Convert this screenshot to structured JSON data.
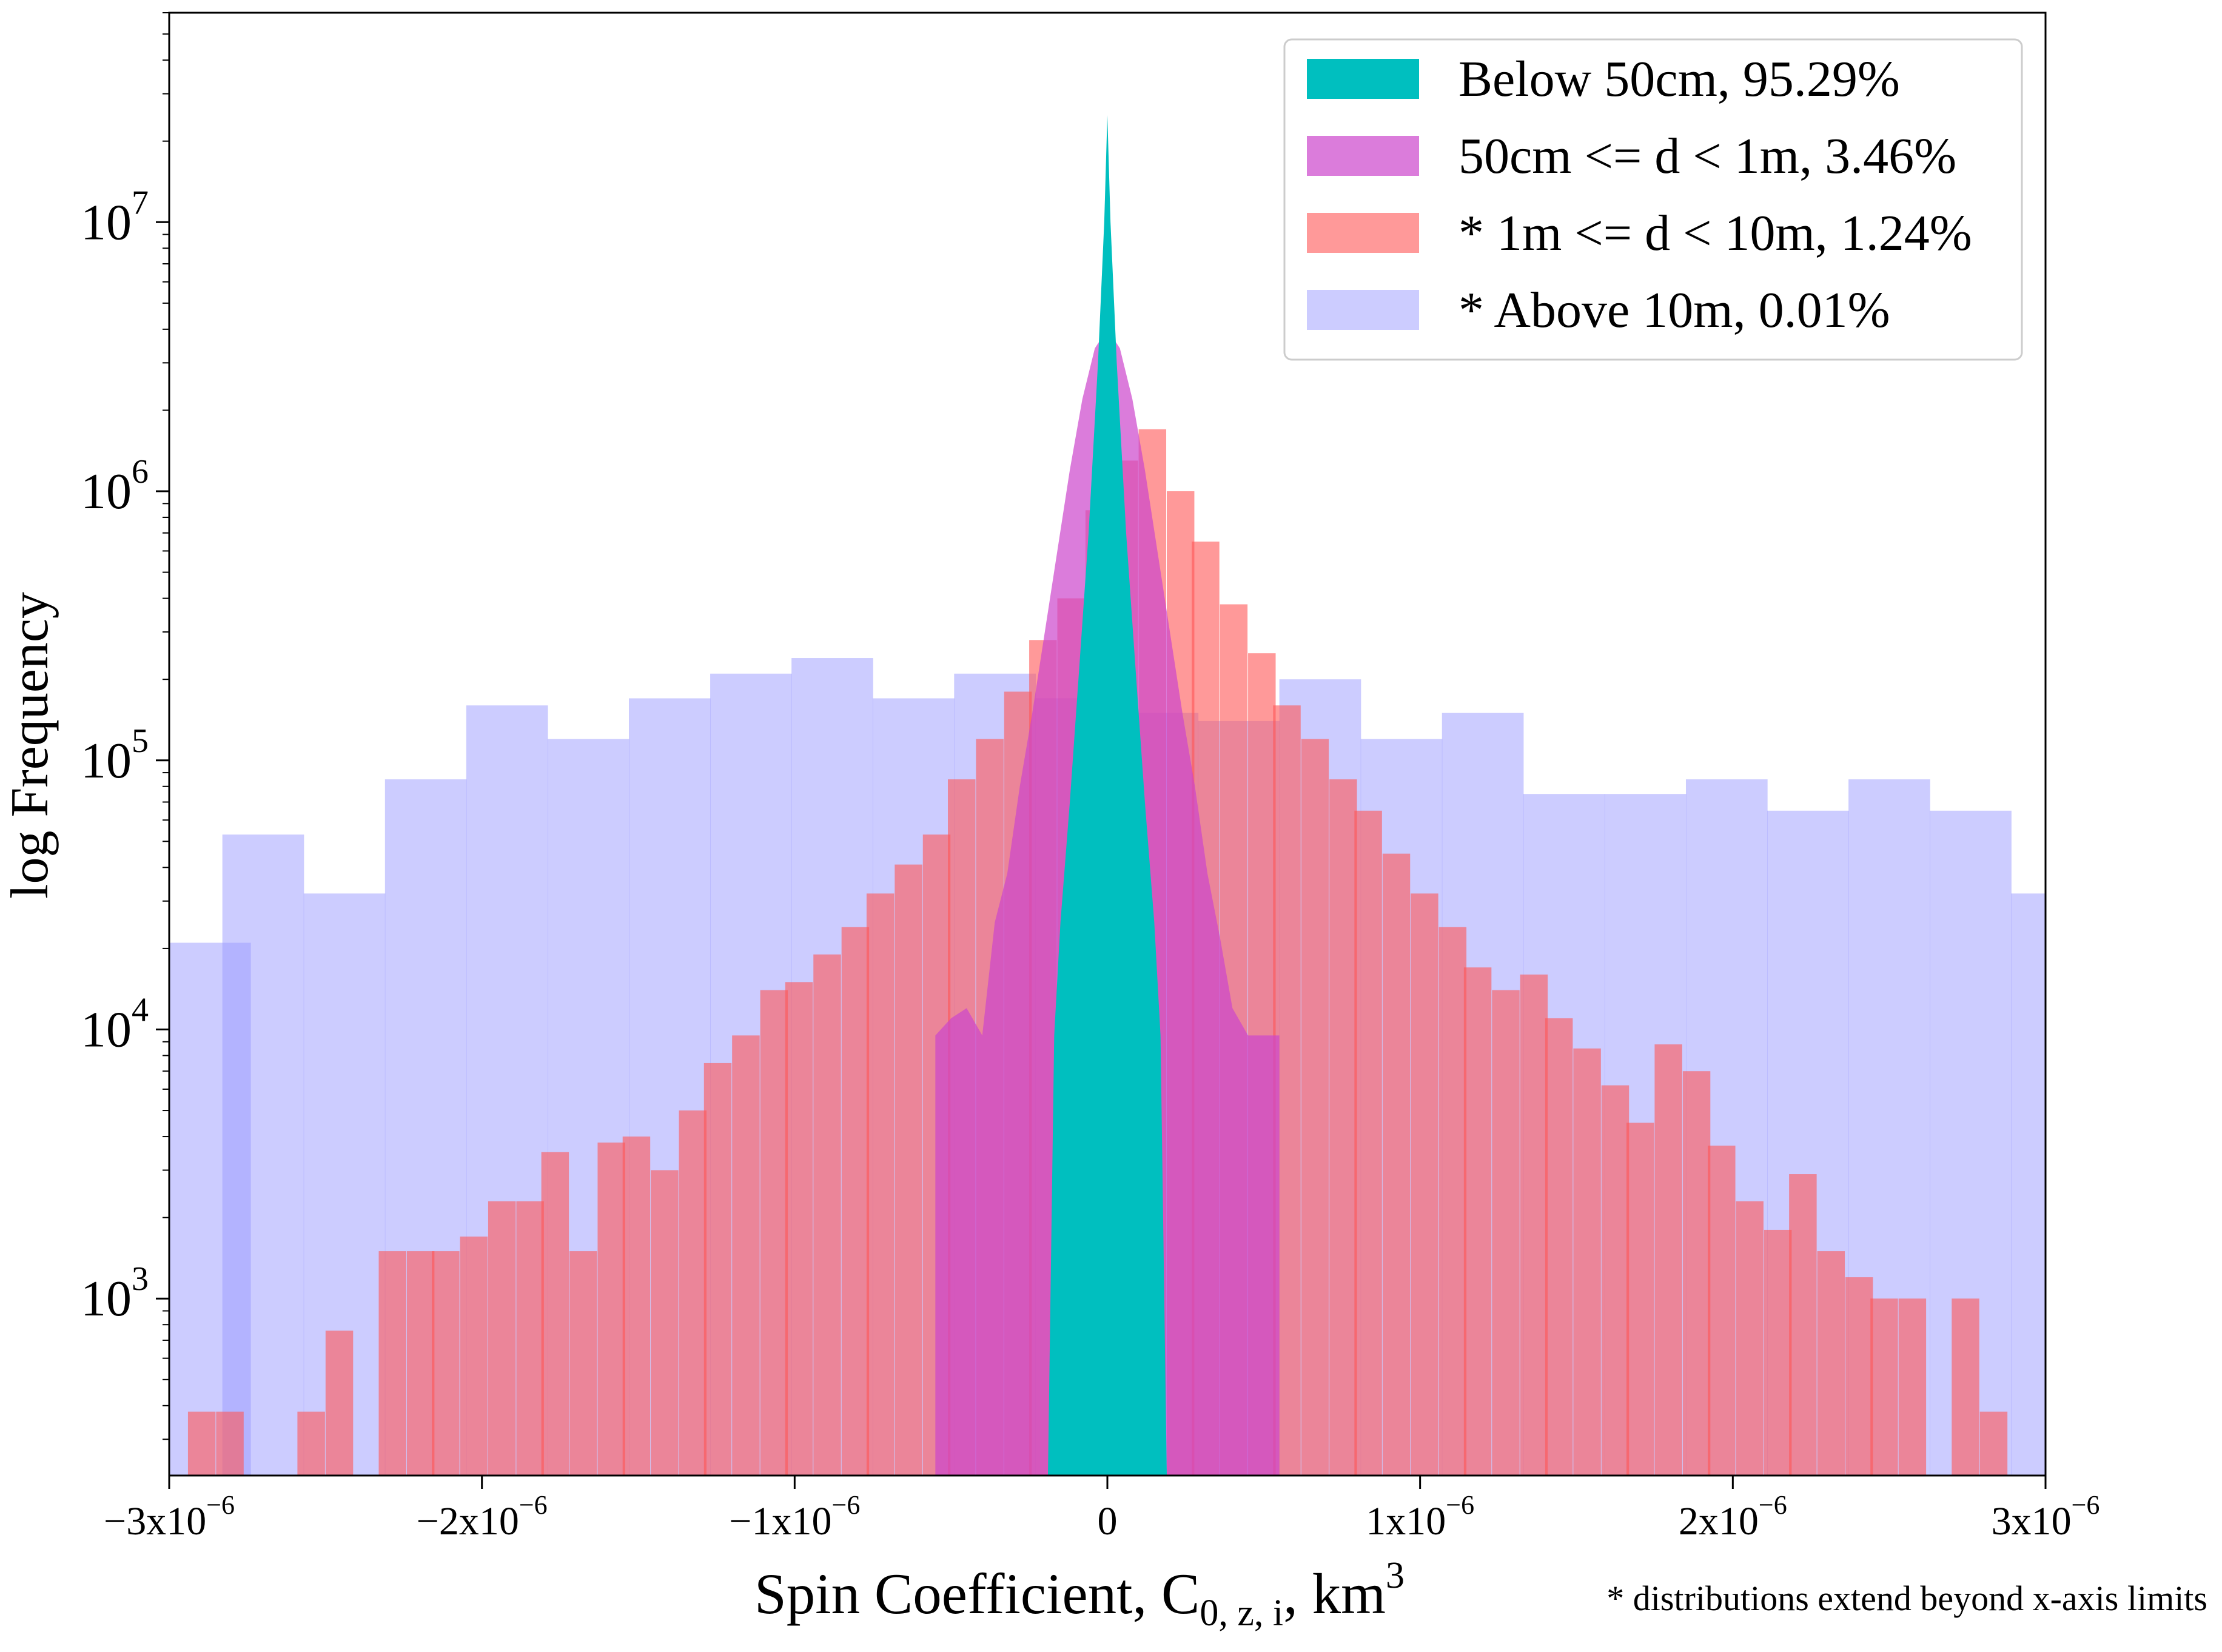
{
  "chart_data": {
    "type": "histogram",
    "title": "",
    "xlabel": {
      "main": "Spin Coefficient, C",
      "sub": "0, z, i",
      "unit": ", km",
      "sup": "3"
    },
    "ylabel": "log Frequency",
    "yscale": "log",
    "xlim": [
      -3e-06,
      3e-06
    ],
    "ylim": [
      220,
      60000000
    ],
    "x_ticks": [
      {
        "value": -3e-06,
        "base": "−3x10",
        "exp": "−6"
      },
      {
        "value": -2e-06,
        "base": "−2x10",
        "exp": "−6"
      },
      {
        "value": -1e-06,
        "base": "−1x10",
        "exp": "−6"
      },
      {
        "value": 0,
        "base": "0",
        "exp": ""
      },
      {
        "value": 1e-06,
        "base": "1x10",
        "exp": "−6"
      },
      {
        "value": 2e-06,
        "base": "2x10",
        "exp": "−6"
      },
      {
        "value": 3e-06,
        "base": "3x10",
        "exp": "−6"
      }
    ],
    "y_ticks": [
      {
        "value": 1000,
        "base": "10",
        "exp": "3"
      },
      {
        "value": 10000,
        "base": "10",
        "exp": "4"
      },
      {
        "value": 100000,
        "base": "10",
        "exp": "5"
      },
      {
        "value": 1000000,
        "base": "10",
        "exp": "6"
      },
      {
        "value": 10000000,
        "base": "10",
        "exp": "7"
      }
    ],
    "legend_position": "top-right",
    "footnote": "* distributions extend beyond x-axis limits",
    "series": [
      {
        "name": "* Above 10m, 0.01%",
        "color": "#9999ff",
        "opacity": 0.5,
        "bin_width": 2.6e-07,
        "bins": [
          [
            -3e-06,
            21000
          ],
          [
            -2.83e-06,
            53000
          ],
          [
            -2.57e-06,
            32000
          ],
          [
            -2.31e-06,
            85000
          ],
          [
            -2.05e-06,
            160000
          ],
          [
            -1.79e-06,
            120000
          ],
          [
            -1.53e-06,
            170000
          ],
          [
            -1.27e-06,
            210000
          ],
          [
            -1.01e-06,
            240000
          ],
          [
            -7.5e-07,
            170000
          ],
          [
            -4.9e-07,
            210000
          ],
          [
            -2.3e-07,
            170000
          ],
          [
            3e-08,
            150000
          ],
          [
            2.9e-07,
            140000
          ],
          [
            5.5e-07,
            200000
          ],
          [
            8.1e-07,
            120000
          ],
          [
            1.07e-06,
            150000
          ],
          [
            1.33e-06,
            75000
          ],
          [
            1.59e-06,
            75000
          ],
          [
            1.85e-06,
            85000
          ],
          [
            2.11e-06,
            65000
          ],
          [
            2.37e-06,
            85000
          ],
          [
            2.63e-06,
            65000
          ],
          [
            2.89e-06,
            32000
          ]
        ]
      },
      {
        "name": "* 1m <= d < 10m, 1.24%",
        "color": "#ff5555",
        "opacity": 0.6,
        "bin_width": 8.7e-08,
        "bins": [
          [
            -2.94e-06,
            380
          ],
          [
            -2.85e-06,
            380
          ],
          [
            -2.76e-06,
            0
          ],
          [
            -2.68e-06,
            0
          ],
          [
            -2.59e-06,
            380
          ],
          [
            -2.5e-06,
            760
          ],
          [
            -2.42e-06,
            0
          ],
          [
            -2.33e-06,
            1500
          ],
          [
            -2.24e-06,
            1500
          ],
          [
            -2.16e-06,
            1500
          ],
          [
            -2.07e-06,
            1700
          ],
          [
            -1.98e-06,
            2300
          ],
          [
            -1.89e-06,
            2300
          ],
          [
            -1.81e-06,
            3500
          ],
          [
            -1.72e-06,
            1500
          ],
          [
            -1.63e-06,
            3800
          ],
          [
            -1.55e-06,
            4000
          ],
          [
            -1.46e-06,
            3000
          ],
          [
            -1.37e-06,
            5000
          ],
          [
            -1.29e-06,
            7500
          ],
          [
            -1.2e-06,
            9500
          ],
          [
            -1.11e-06,
            14000
          ],
          [
            -1.03e-06,
            15000
          ],
          [
            -9.4e-07,
            19000
          ],
          [
            -8.5e-07,
            24000
          ],
          [
            -7.7e-07,
            32000
          ],
          [
            -6.8e-07,
            41000
          ],
          [
            -5.9e-07,
            53000
          ],
          [
            -5.1e-07,
            85000
          ],
          [
            -4.2e-07,
            120000
          ],
          [
            -3.3e-07,
            180000
          ],
          [
            -2.5e-07,
            280000
          ],
          [
            -1.6e-07,
            400000
          ],
          [
            -7e-08,
            850000
          ],
          [
            1e-08,
            1300000
          ],
          [
            1e-07,
            1700000
          ],
          [
            1.9e-07,
            1000000
          ],
          [
            2.7e-07,
            650000
          ],
          [
            3.6e-07,
            380000
          ],
          [
            4.5e-07,
            250000
          ],
          [
            5.3e-07,
            160000
          ],
          [
            6.2e-07,
            120000
          ],
          [
            7.1e-07,
            85000
          ],
          [
            7.9e-07,
            65000
          ],
          [
            8.8e-07,
            45000
          ],
          [
            9.7e-07,
            32000
          ],
          [
            1.06e-06,
            24000
          ],
          [
            1.14e-06,
            17000
          ],
          [
            1.23e-06,
            14000
          ],
          [
            1.32e-06,
            16000
          ],
          [
            1.4e-06,
            11000
          ],
          [
            1.49e-06,
            8500
          ],
          [
            1.58e-06,
            6200
          ],
          [
            1.66e-06,
            4500
          ],
          [
            1.75e-06,
            8800
          ],
          [
            1.84e-06,
            7000
          ],
          [
            1.92e-06,
            3700
          ],
          [
            2.01e-06,
            2300
          ],
          [
            2.1e-06,
            1800
          ],
          [
            2.18e-06,
            2900
          ],
          [
            2.27e-06,
            1500
          ],
          [
            2.36e-06,
            1200
          ],
          [
            2.44e-06,
            1000
          ],
          [
            2.53e-06,
            1000
          ],
          [
            2.62e-06,
            0
          ],
          [
            2.7e-06,
            1000
          ],
          [
            2.79e-06,
            380
          ],
          [
            2.88e-06,
            0
          ]
        ]
      },
      {
        "name": "50cm <= d < 1m, 3.46%",
        "color": "#cc44cc",
        "opacity": 0.7,
        "points": [
          [
            -5.5e-07,
            9500
          ],
          [
            -5e-07,
            11000
          ],
          [
            -4.5e-07,
            12000
          ],
          [
            -4e-07,
            9500
          ],
          [
            -3.6e-07,
            25000
          ],
          [
            -3.2e-07,
            38000
          ],
          [
            -2.8e-07,
            80000
          ],
          [
            -2.4e-07,
            150000
          ],
          [
            -2e-07,
            300000
          ],
          [
            -1.6e-07,
            600000
          ],
          [
            -1.2e-07,
            1200000
          ],
          [
            -8e-08,
            2200000
          ],
          [
            -4e-08,
            3400000
          ],
          [
            0,
            4000000
          ],
          [
            4e-08,
            3400000
          ],
          [
            8e-08,
            2200000
          ],
          [
            1.2e-07,
            1200000
          ],
          [
            1.6e-07,
            600000
          ],
          [
            2e-07,
            300000
          ],
          [
            2.4e-07,
            150000
          ],
          [
            2.8e-07,
            80000
          ],
          [
            3.2e-07,
            38000
          ],
          [
            3.6e-07,
            22000
          ],
          [
            4e-07,
            12000
          ],
          [
            4.5e-07,
            9500
          ],
          [
            5e-07,
            9500
          ],
          [
            5.5e-07,
            9500
          ]
        ]
      },
      {
        "name": "Below 50cm, 95.29%",
        "color": "#00bfbf",
        "opacity": 1,
        "points": [
          [
            -1.9e-07,
            220
          ],
          [
            -1.7e-07,
            9500
          ],
          [
            -1.5e-07,
            25000
          ],
          [
            -1.2e-07,
            70000
          ],
          [
            -9e-08,
            220000
          ],
          [
            -6e-08,
            700000
          ],
          [
            -3e-08,
            3000000
          ],
          [
            -1e-08,
            10000000
          ],
          [
            0,
            25000000
          ],
          [
            1e-08,
            10000000
          ],
          [
            3e-08,
            3000000
          ],
          [
            6e-08,
            700000
          ],
          [
            9e-08,
            220000
          ],
          [
            1.2e-07,
            70000
          ],
          [
            1.5e-07,
            25000
          ],
          [
            1.7e-07,
            9500
          ],
          [
            1.9e-07,
            220
          ]
        ]
      }
    ],
    "legend": [
      {
        "label": "Below 50cm, 95.29%",
        "color": "#00bfbf",
        "opacity": 1
      },
      {
        "label": "50cm <= d < 1m, 3.46%",
        "color": "#cc44cc",
        "opacity": 0.7
      },
      {
        "label": "* 1m <= d < 10m, 1.24%",
        "color": "#ff5555",
        "opacity": 0.6
      },
      {
        "label": "* Above 10m, 0.01%",
        "color": "#9999ff",
        "opacity": 0.5
      }
    ]
  }
}
